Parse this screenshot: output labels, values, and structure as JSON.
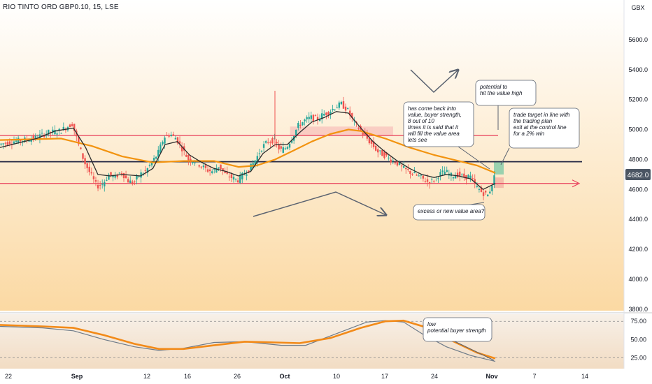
{
  "header": {
    "title": "RIO TINTO ORD GBP0.10, 15, LSE",
    "currency": "GBX"
  },
  "colors": {
    "bg_top": "#ffffff",
    "bg_bottom": "#fbd9a3",
    "price_line": "#e8405c",
    "control_line": "#252845",
    "ma_fast": "#2b2b2b",
    "ma_slow": "#f2930f",
    "candle_up": "#26a69a",
    "candle_down": "#ef5350",
    "osc_line": "#6d7a88",
    "osc_signal": "#f28a18",
    "value_area": "#f6b0b0",
    "target_box": "#78c8a4",
    "stop_box": "#f3b2a2"
  },
  "chart_data": {
    "type": "line",
    "symbol": "RIO TINTO ORD GBP0.10",
    "interval": "15",
    "exchange": "LSE",
    "price_axis": {
      "ticks": [
        3800,
        4000,
        4200,
        4400,
        4600,
        4800,
        5000,
        5200,
        5400,
        5600
      ],
      "ylim": [
        3790,
        5800
      ],
      "unit": "GBX"
    },
    "time_axis": {
      "tick_labels": [
        "22",
        "Sep",
        "12",
        "16",
        "26",
        "Oct",
        "10",
        "17",
        "24",
        "Nov",
        "7",
        "14"
      ]
    },
    "current_price": "4682.0",
    "levels": {
      "value_area_high": 4960,
      "control_line": 4785,
      "value_area_low": 4640
    },
    "value_area_zone": [
      4960,
      5020
    ],
    "trade_zones": {
      "target": [
        4700,
        4790
      ],
      "stop": [
        4610,
        4680
      ]
    },
    "price_path": [
      [
        0,
        4900
      ],
      [
        4,
        4920
      ],
      [
        8,
        4930
      ],
      [
        12,
        4945
      ],
      [
        16,
        4980
      ],
      [
        20,
        4990
      ],
      [
        24,
        5040
      ],
      [
        26,
        4900
      ],
      [
        28,
        4780
      ],
      [
        30,
        4700
      ],
      [
        32,
        4620
      ],
      [
        34,
        4640
      ],
      [
        36,
        4700
      ],
      [
        38,
        4680
      ],
      [
        40,
        4720
      ],
      [
        42,
        4660
      ],
      [
        44,
        4640
      ],
      [
        46,
        4700
      ],
      [
        48,
        4720
      ],
      [
        50,
        4780
      ],
      [
        52,
        4840
      ],
      [
        54,
        4950
      ],
      [
        56,
        4970
      ],
      [
        58,
        4940
      ],
      [
        60,
        4870
      ],
      [
        62,
        4800
      ],
      [
        64,
        4790
      ],
      [
        66,
        4760
      ],
      [
        68,
        4730
      ],
      [
        70,
        4720
      ],
      [
        72,
        4760
      ],
      [
        74,
        4700
      ],
      [
        76,
        4680
      ],
      [
        78,
        4660
      ],
      [
        80,
        4700
      ],
      [
        82,
        4740
      ],
      [
        84,
        4800
      ],
      [
        86,
        4880
      ],
      [
        88,
        4920
      ],
      [
        90,
        4930
      ],
      [
        92,
        4860
      ],
      [
        94,
        4880
      ],
      [
        96,
        4950
      ],
      [
        98,
        5030
      ],
      [
        100,
        5060
      ],
      [
        102,
        5080
      ],
      [
        104,
        5070
      ],
      [
        106,
        5100
      ],
      [
        108,
        5120
      ],
      [
        110,
        5150
      ],
      [
        112,
        5170
      ],
      [
        114,
        5130
      ],
      [
        116,
        5050
      ],
      [
        118,
        5000
      ],
      [
        120,
        4950
      ],
      [
        122,
        4900
      ],
      [
        124,
        4850
      ],
      [
        126,
        4830
      ],
      [
        128,
        4800
      ],
      [
        130,
        4780
      ],
      [
        132,
        4740
      ],
      [
        134,
        4720
      ],
      [
        136,
        4700
      ],
      [
        138,
        4680
      ],
      [
        140,
        4650
      ],
      [
        142,
        4660
      ],
      [
        144,
        4700
      ],
      [
        146,
        4720
      ],
      [
        148,
        4690
      ],
      [
        150,
        4700
      ],
      [
        152,
        4680
      ],
      [
        154,
        4690
      ],
      [
        156,
        4620
      ],
      [
        158,
        4580
      ],
      [
        160,
        4560
      ],
      [
        161,
        4620
      ],
      [
        162,
        4682
      ]
    ],
    "ma_fast": [
      [
        0,
        4880
      ],
      [
        6,
        4910
      ],
      [
        12,
        4940
      ],
      [
        18,
        4990
      ],
      [
        24,
        5010
      ],
      [
        28,
        4880
      ],
      [
        32,
        4700
      ],
      [
        36,
        4690
      ],
      [
        40,
        4700
      ],
      [
        46,
        4690
      ],
      [
        50,
        4740
      ],
      [
        54,
        4900
      ],
      [
        58,
        4920
      ],
      [
        62,
        4830
      ],
      [
        66,
        4780
      ],
      [
        70,
        4740
      ],
      [
        74,
        4720
      ],
      [
        78,
        4690
      ],
      [
        82,
        4720
      ],
      [
        86,
        4840
      ],
      [
        90,
        4900
      ],
      [
        94,
        4900
      ],
      [
        98,
        4980
      ],
      [
        102,
        5050
      ],
      [
        106,
        5080
      ],
      [
        110,
        5120
      ],
      [
        114,
        5110
      ],
      [
        118,
        5010
      ],
      [
        122,
        4920
      ],
      [
        126,
        4850
      ],
      [
        130,
        4790
      ],
      [
        134,
        4740
      ],
      [
        138,
        4700
      ],
      [
        142,
        4680
      ],
      [
        146,
        4700
      ],
      [
        150,
        4690
      ],
      [
        154,
        4670
      ],
      [
        158,
        4600
      ],
      [
        162,
        4640
      ]
    ],
    "ma_slow": [
      [
        0,
        4930
      ],
      [
        10,
        4935
      ],
      [
        20,
        4940
      ],
      [
        30,
        4890
      ],
      [
        40,
        4820
      ],
      [
        50,
        4780
      ],
      [
        60,
        4790
      ],
      [
        70,
        4790
      ],
      [
        78,
        4750
      ],
      [
        84,
        4760
      ],
      [
        90,
        4800
      ],
      [
        96,
        4860
      ],
      [
        102,
        4920
      ],
      [
        108,
        4970
      ],
      [
        114,
        5000
      ],
      [
        118,
        4990
      ],
      [
        126,
        4940
      ],
      [
        134,
        4880
      ],
      [
        142,
        4830
      ],
      [
        150,
        4790
      ],
      [
        156,
        4760
      ],
      [
        162,
        4710
      ]
    ],
    "oscillator": {
      "ticks": [
        25,
        50,
        75
      ],
      "ylim": [
        10,
        80
      ],
      "line": [
        [
          0,
          68
        ],
        [
          14,
          66
        ],
        [
          24,
          62
        ],
        [
          34,
          50
        ],
        [
          44,
          40
        ],
        [
          52,
          35
        ],
        [
          60,
          38
        ],
        [
          70,
          46
        ],
        [
          80,
          47
        ],
        [
          92,
          42
        ],
        [
          100,
          42
        ],
        [
          110,
          58
        ],
        [
          120,
          74
        ],
        [
          126,
          76
        ],
        [
          132,
          74
        ],
        [
          138,
          58
        ],
        [
          146,
          40
        ],
        [
          154,
          28
        ],
        [
          162,
          20
        ]
      ],
      "signal": [
        [
          0,
          70
        ],
        [
          14,
          68
        ],
        [
          24,
          66
        ],
        [
          34,
          56
        ],
        [
          44,
          44
        ],
        [
          52,
          37
        ],
        [
          60,
          37
        ],
        [
          70,
          42
        ],
        [
          80,
          47
        ],
        [
          90,
          46
        ],
        [
          98,
          45
        ],
        [
          108,
          52
        ],
        [
          118,
          66
        ],
        [
          126,
          75
        ],
        [
          132,
          76
        ],
        [
          140,
          66
        ],
        [
          148,
          48
        ],
        [
          156,
          32
        ],
        [
          162,
          24
        ]
      ]
    },
    "annotations": [
      "has come back into\nvalue, buyer strength,\n8 out of 10\ntimes it is said that it\nwill fill the value area\nlets see",
      "potential to\nhit the value high",
      "trade target in line with\nthe trading plan\nexit at the control line\nfor a 2% win",
      "excess or new value area?",
      "low\npotential buyer strength"
    ]
  }
}
